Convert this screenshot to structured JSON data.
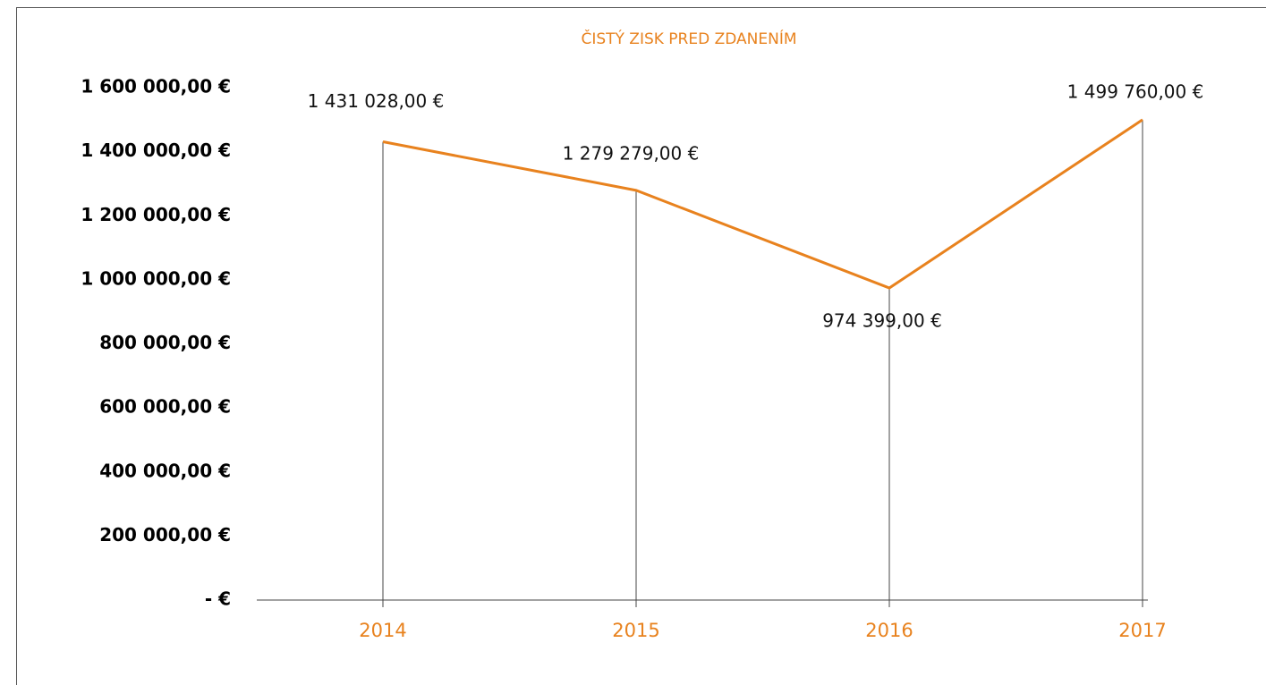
{
  "chart_data": {
    "type": "line",
    "title": "ČISTÝ ZISK PRED ZDANENÍM",
    "categories": [
      "2014",
      "2015",
      "2016",
      "2017"
    ],
    "values": [
      1431028,
      1279279,
      974399,
      1499760
    ],
    "value_labels": [
      "1 431 028,00 €",
      "1 279 279,00 €",
      "974 399,00 €",
      "1 499 760,00 €"
    ],
    "color": "#e8821e",
    "ylim": [
      0,
      1600000
    ],
    "yticks": [
      {
        "value": 0,
        "label": "- €"
      },
      {
        "value": 200000,
        "label": "200 000,00 €"
      },
      {
        "value": 400000,
        "label": "400 000,00 €"
      },
      {
        "value": 600000,
        "label": "600 000,00 €"
      },
      {
        "value": 800000,
        "label": "800 000,00 €"
      },
      {
        "value": 1000000,
        "label": "1 000 000,00 €"
      },
      {
        "value": 1200000,
        "label": "1 200 000,00 €"
      },
      {
        "value": 1400000,
        "label": "1 400 000,00 €"
      },
      {
        "value": 1600000,
        "label": "1 600 000,00 €"
      }
    ],
    "grid": false
  }
}
